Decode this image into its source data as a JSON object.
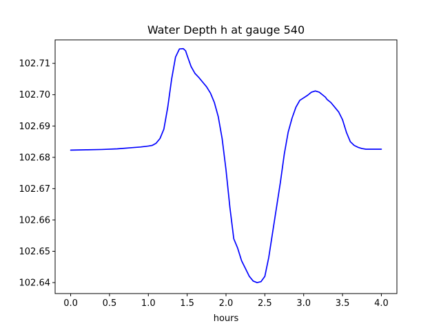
{
  "chart_data": {
    "type": "line",
    "title": "Water Depth h at gauge 540",
    "xlabel": "hours",
    "ylabel": "",
    "xlim": [
      -0.2,
      4.2
    ],
    "ylim": [
      102.6365,
      102.7175
    ],
    "grid": false,
    "legend": "none",
    "x_ticks": [
      "0.0",
      "0.5",
      "1.0",
      "1.5",
      "2.0",
      "2.5",
      "3.0",
      "3.5",
      "4.0"
    ],
    "y_ticks": [
      "102.64",
      "102.65",
      "102.66",
      "102.67",
      "102.68",
      "102.69",
      "102.70",
      "102.71"
    ],
    "series": [
      {
        "color": "#0000ff",
        "x": [
          0.0,
          0.2,
          0.4,
          0.6,
          0.8,
          0.9,
          1.0,
          1.05,
          1.1,
          1.15,
          1.2,
          1.25,
          1.3,
          1.35,
          1.4,
          1.45,
          1.48,
          1.5,
          1.55,
          1.6,
          1.65,
          1.7,
          1.75,
          1.8,
          1.85,
          1.9,
          1.95,
          2.0,
          2.05,
          2.1,
          2.15,
          2.2,
          2.25,
          2.3,
          2.35,
          2.4,
          2.45,
          2.5,
          2.55,
          2.6,
          2.65,
          2.7,
          2.75,
          2.8,
          2.85,
          2.9,
          2.95,
          3.0,
          3.05,
          3.1,
          3.15,
          3.2,
          3.25,
          3.28,
          3.3,
          3.35,
          3.4,
          3.45,
          3.5,
          3.55,
          3.6,
          3.65,
          3.7,
          3.75,
          3.8,
          3.85,
          3.9,
          3.95,
          4.0
        ],
        "values": [
          102.6823,
          102.6824,
          102.6825,
          102.6827,
          102.6831,
          102.6833,
          102.6836,
          102.6838,
          102.6845,
          102.686,
          102.689,
          102.696,
          102.705,
          102.712,
          102.7146,
          102.7147,
          102.714,
          102.7125,
          102.709,
          102.7068,
          102.7055,
          102.704,
          102.7025,
          102.7005,
          102.6975,
          102.693,
          102.686,
          102.676,
          102.664,
          102.654,
          102.651,
          102.647,
          102.6445,
          102.642,
          102.6405,
          102.64,
          102.6403,
          102.642,
          102.648,
          102.656,
          102.664,
          102.672,
          102.681,
          102.688,
          102.6925,
          102.696,
          102.6982,
          102.699,
          102.6998,
          102.7008,
          102.7012,
          102.7008,
          102.6998,
          102.6992,
          102.6985,
          102.6975,
          102.696,
          102.6945,
          102.692,
          102.688,
          102.685,
          102.6838,
          102.6832,
          102.6828,
          102.6826,
          102.6826,
          102.6826,
          102.6826,
          102.6826
        ]
      }
    ]
  }
}
